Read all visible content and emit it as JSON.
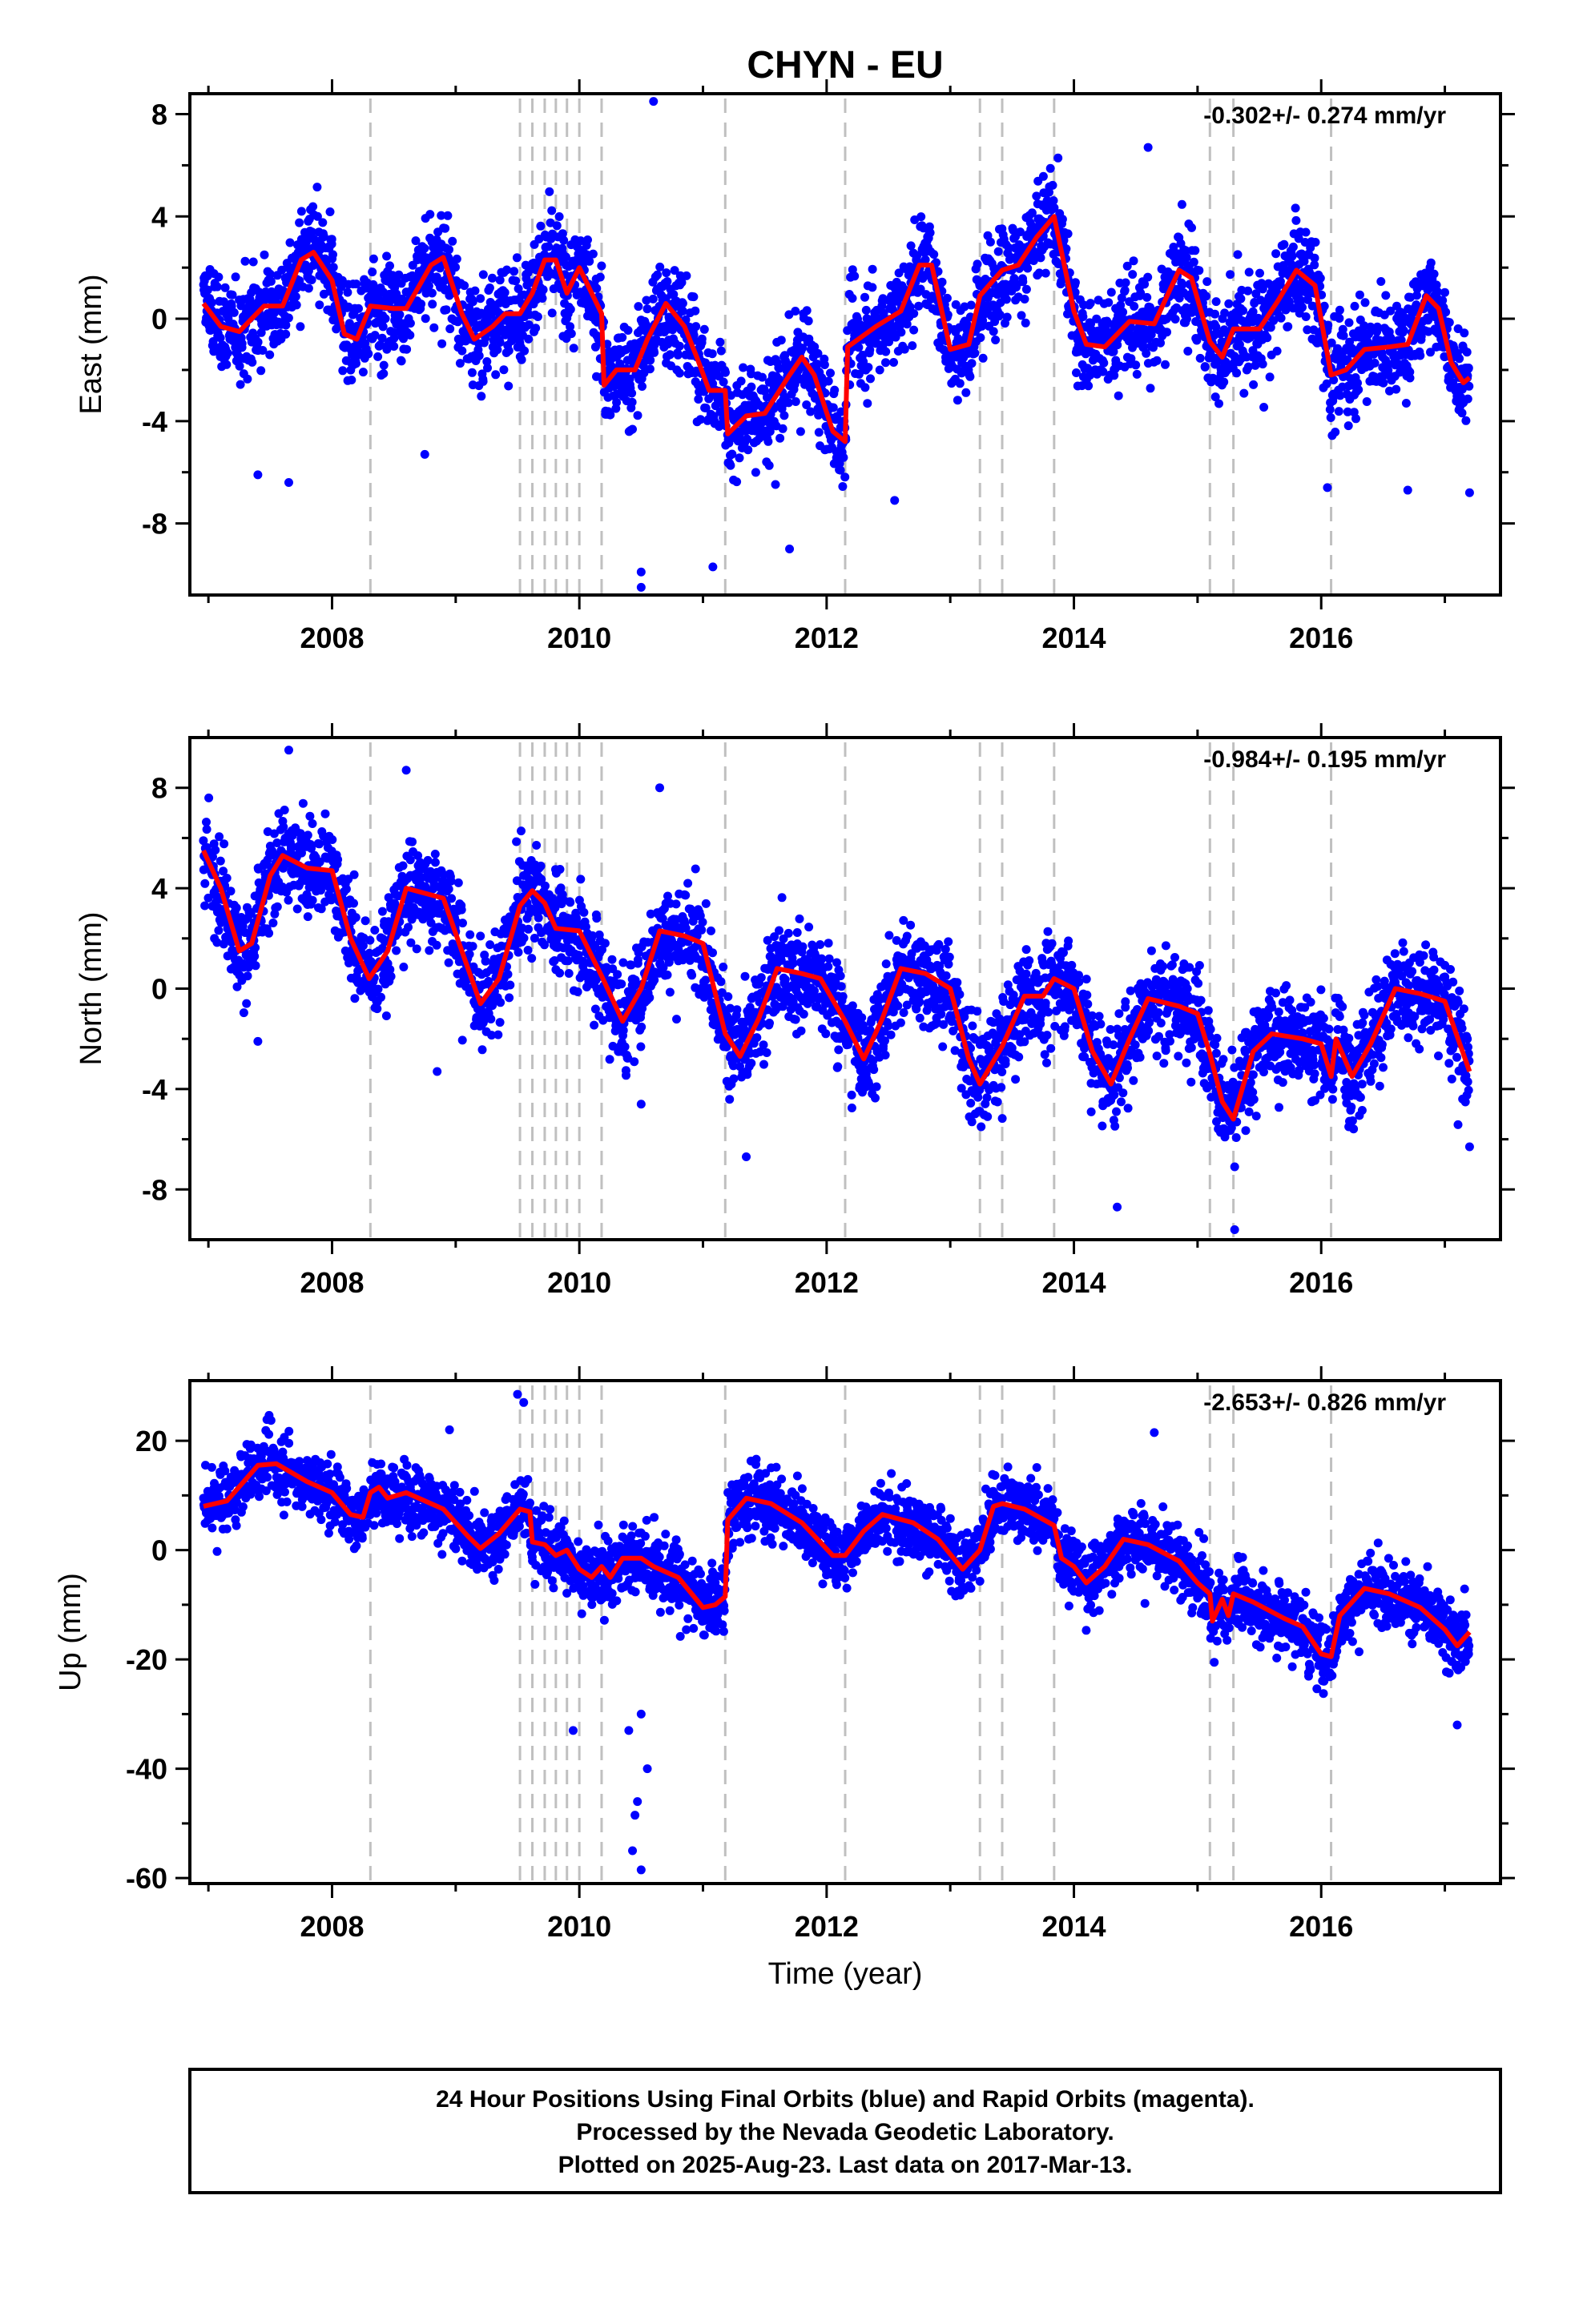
{
  "title": "CHYN - EU",
  "xlabel": "Time (year)",
  "footer": {
    "line1": "24 Hour Positions Using Final Orbits (blue) and Rapid Orbits (magenta).",
    "line2": "Processed by the Nevada Geodetic Laboratory.",
    "line3": "Plotted on 2025-Aug-23. Last data on 2017-Mar-13."
  },
  "colors": {
    "points": "#0000ff",
    "model": "#ff0000",
    "steps": "#c0c0c0",
    "frame": "#000000"
  },
  "chart_data": [
    {
      "type": "scatter",
      "ylabel": "East (mm)",
      "rate": "-0.302+/- 0.274 mm/yr",
      "xlim": [
        2006.85,
        2017.45
      ],
      "ylim": [
        -10.8,
        8.8
      ],
      "xticks": [
        2008,
        2010,
        2012,
        2014,
        2016
      ],
      "yticks": [
        8,
        4,
        0,
        -4,
        -8
      ],
      "steps": [
        2008.31,
        2009.52,
        2009.62,
        2009.72,
        2009.81,
        2009.9,
        2010.0,
        2010.18,
        2011.18,
        2012.15,
        2013.24,
        2013.42,
        2013.84,
        2015.1,
        2015.29,
        2016.08
      ],
      "model": [
        [
          2006.96,
          0.6
        ],
        [
          2007.1,
          -0.3
        ],
        [
          2007.25,
          -0.5
        ],
        [
          2007.45,
          0.5
        ],
        [
          2007.6,
          0.5
        ],
        [
          2007.75,
          2.3
        ],
        [
          2007.85,
          2.6
        ],
        [
          2008.0,
          1.5
        ],
        [
          2008.1,
          -0.6
        ],
        [
          2008.2,
          -0.8
        ],
        [
          2008.31,
          0.5
        ],
        [
          2008.5,
          0.4
        ],
        [
          2008.6,
          0.4
        ],
        [
          2008.8,
          2.1
        ],
        [
          2008.9,
          2.4
        ],
        [
          2009.05,
          0.2
        ],
        [
          2009.15,
          -0.8
        ],
        [
          2009.3,
          -0.3
        ],
        [
          2009.4,
          0.2
        ],
        [
          2009.52,
          0.2
        ],
        [
          2009.62,
          1.0
        ],
        [
          2009.72,
          2.3
        ],
        [
          2009.81,
          2.3
        ],
        [
          2009.9,
          1.0
        ],
        [
          2010.0,
          2.0
        ],
        [
          2010.18,
          0.2
        ],
        [
          2010.2,
          -2.6
        ],
        [
          2010.3,
          -2.0
        ],
        [
          2010.45,
          -2.0
        ],
        [
          2010.55,
          -0.8
        ],
        [
          2010.7,
          0.6
        ],
        [
          2010.85,
          -0.3
        ],
        [
          2010.95,
          -1.5
        ],
        [
          2011.05,
          -2.8
        ],
        [
          2011.18,
          -2.8
        ],
        [
          2011.2,
          -4.5
        ],
        [
          2011.35,
          -3.8
        ],
        [
          2011.5,
          -3.7
        ],
        [
          2011.7,
          -2.2
        ],
        [
          2011.8,
          -1.5
        ],
        [
          2011.9,
          -2.2
        ],
        [
          2012.05,
          -4.4
        ],
        [
          2012.15,
          -4.8
        ],
        [
          2012.17,
          -1.1
        ],
        [
          2012.4,
          -0.3
        ],
        [
          2012.6,
          0.3
        ],
        [
          2012.75,
          2.1
        ],
        [
          2012.85,
          2.1
        ],
        [
          2013.0,
          -1.2
        ],
        [
          2013.15,
          -1.0
        ],
        [
          2013.24,
          0.9
        ],
        [
          2013.42,
          1.9
        ],
        [
          2013.55,
          2.1
        ],
        [
          2013.7,
          3.2
        ],
        [
          2013.84,
          4.0
        ],
        [
          2014.0,
          0.3
        ],
        [
          2014.1,
          -1.0
        ],
        [
          2014.25,
          -1.1
        ],
        [
          2014.45,
          -0.1
        ],
        [
          2014.65,
          -0.2
        ],
        [
          2014.85,
          1.9
        ],
        [
          2014.95,
          1.6
        ],
        [
          2015.1,
          -0.9
        ],
        [
          2015.2,
          -1.5
        ],
        [
          2015.29,
          -0.4
        ],
        [
          2015.5,
          -0.4
        ],
        [
          2015.65,
          0.7
        ],
        [
          2015.8,
          1.9
        ],
        [
          2015.95,
          1.3
        ],
        [
          2016.08,
          -2.2
        ],
        [
          2016.2,
          -2.0
        ],
        [
          2016.35,
          -1.2
        ],
        [
          2016.55,
          -1.1
        ],
        [
          2016.7,
          -1.0
        ],
        [
          2016.85,
          0.9
        ],
        [
          2016.95,
          0.4
        ],
        [
          2017.05,
          -1.7
        ],
        [
          2017.15,
          -2.5
        ],
        [
          2017.2,
          -2.3
        ]
      ],
      "outliers": [
        [
          2007.4,
          -6.1
        ],
        [
          2007.65,
          -6.4
        ],
        [
          2008.75,
          -5.3
        ],
        [
          2010.5,
          -10.5
        ],
        [
          2010.5,
          -9.9
        ],
        [
          2010.6,
          8.5
        ],
        [
          2011.08,
          -9.7
        ],
        [
          2011.7,
          -9.0
        ],
        [
          2012.55,
          -7.1
        ],
        [
          2014.6,
          6.7
        ],
        [
          2016.7,
          -6.7
        ],
        [
          2016.05,
          -6.6
        ],
        [
          2017.2,
          -6.8
        ]
      ]
    },
    {
      "type": "scatter",
      "ylabel": "North (mm)",
      "rate": "-0.984+/- 0.195 mm/yr",
      "xlim": [
        2006.85,
        2017.45
      ],
      "ylim": [
        -10.0,
        10.0
      ],
      "xticks": [
        2008,
        2010,
        2012,
        2014,
        2016
      ],
      "yticks": [
        8,
        4,
        0,
        -4,
        -8
      ],
      "steps": [
        2008.31,
        2009.52,
        2009.62,
        2009.72,
        2009.81,
        2009.9,
        2010.0,
        2010.18,
        2011.18,
        2012.15,
        2013.24,
        2013.42,
        2013.84,
        2015.1,
        2015.29,
        2016.08
      ],
      "model": [
        [
          2006.96,
          5.5
        ],
        [
          2007.1,
          4.0
        ],
        [
          2007.25,
          1.5
        ],
        [
          2007.35,
          1.8
        ],
        [
          2007.5,
          4.5
        ],
        [
          2007.6,
          5.3
        ],
        [
          2007.8,
          4.8
        ],
        [
          2008.0,
          4.7
        ],
        [
          2008.15,
          2.0
        ],
        [
          2008.3,
          0.4
        ],
        [
          2008.45,
          1.5
        ],
        [
          2008.6,
          4.0
        ],
        [
          2008.75,
          3.8
        ],
        [
          2008.9,
          3.6
        ],
        [
          2009.05,
          1.5
        ],
        [
          2009.2,
          -0.6
        ],
        [
          2009.35,
          0.4
        ],
        [
          2009.52,
          3.3
        ],
        [
          2009.62,
          3.9
        ],
        [
          2009.72,
          3.4
        ],
        [
          2009.81,
          2.4
        ],
        [
          2010.0,
          2.3
        ],
        [
          2010.18,
          0.5
        ],
        [
          2010.35,
          -1.3
        ],
        [
          2010.5,
          0.0
        ],
        [
          2010.65,
          2.3
        ],
        [
          2010.85,
          2.1
        ],
        [
          2011.0,
          1.8
        ],
        [
          2011.18,
          -1.8
        ],
        [
          2011.3,
          -2.7
        ],
        [
          2011.45,
          -1.2
        ],
        [
          2011.6,
          0.8
        ],
        [
          2011.8,
          0.6
        ],
        [
          2011.95,
          0.4
        ],
        [
          2012.15,
          -1.3
        ],
        [
          2012.3,
          -2.8
        ],
        [
          2012.45,
          -1.2
        ],
        [
          2012.6,
          0.8
        ],
        [
          2012.8,
          0.6
        ],
        [
          2013.0,
          0.0
        ],
        [
          2013.15,
          -2.8
        ],
        [
          2013.24,
          -3.8
        ],
        [
          2013.42,
          -2.3
        ],
        [
          2013.6,
          -0.3
        ],
        [
          2013.75,
          -0.3
        ],
        [
          2013.84,
          0.4
        ],
        [
          2014.0,
          0.0
        ],
        [
          2014.15,
          -2.5
        ],
        [
          2014.3,
          -3.8
        ],
        [
          2014.45,
          -2.0
        ],
        [
          2014.6,
          -0.4
        ],
        [
          2014.85,
          -0.7
        ],
        [
          2015.0,
          -1.0
        ],
        [
          2015.1,
          -2.6
        ],
        [
          2015.2,
          -4.5
        ],
        [
          2015.29,
          -5.2
        ],
        [
          2015.45,
          -2.5
        ],
        [
          2015.6,
          -1.8
        ],
        [
          2015.85,
          -2.0
        ],
        [
          2016.0,
          -2.2
        ],
        [
          2016.08,
          -3.5
        ],
        [
          2016.12,
          -2.0
        ],
        [
          2016.25,
          -3.5
        ],
        [
          2016.4,
          -2.2
        ],
        [
          2016.6,
          0.0
        ],
        [
          2016.8,
          -0.2
        ],
        [
          2017.0,
          -0.5
        ],
        [
          2017.2,
          -3.3
        ]
      ],
      "outliers": [
        [
          2007.65,
          9.5
        ],
        [
          2008.6,
          8.7
        ],
        [
          2010.65,
          8.0
        ],
        [
          2007.4,
          -2.1
        ],
        [
          2008.85,
          -3.3
        ],
        [
          2010.5,
          -4.6
        ],
        [
          2011.35,
          -6.7
        ],
        [
          2014.35,
          -8.7
        ],
        [
          2015.3,
          -9.6
        ],
        [
          2017.2,
          -6.3
        ]
      ]
    },
    {
      "type": "scatter",
      "ylabel": "Up (mm)",
      "rate": "-2.653+/- 0.826 mm/yr",
      "xlim": [
        2006.85,
        2017.45
      ],
      "ylim": [
        -61.0,
        31.0
      ],
      "xticks": [
        2008,
        2010,
        2012,
        2014,
        2016
      ],
      "yticks": [
        20,
        0,
        -20,
        -40,
        -60
      ],
      "steps": [
        2008.31,
        2009.52,
        2009.62,
        2009.72,
        2009.81,
        2009.9,
        2010.0,
        2010.18,
        2011.18,
        2012.15,
        2013.24,
        2013.42,
        2013.84,
        2015.1,
        2015.29,
        2016.08
      ],
      "model": [
        [
          2006.96,
          8.0
        ],
        [
          2007.15,
          9.0
        ],
        [
          2007.4,
          15.5
        ],
        [
          2007.55,
          15.8
        ],
        [
          2007.8,
          12.5
        ],
        [
          2008.0,
          10.5
        ],
        [
          2008.15,
          6.5
        ],
        [
          2008.25,
          6.0
        ],
        [
          2008.31,
          10.5
        ],
        [
          2008.38,
          11.5
        ],
        [
          2008.45,
          9.5
        ],
        [
          2008.6,
          10.5
        ],
        [
          2008.9,
          7.5
        ],
        [
          2009.1,
          2.5
        ],
        [
          2009.2,
          0.3
        ],
        [
          2009.35,
          3.0
        ],
        [
          2009.52,
          7.5
        ],
        [
          2009.6,
          7.0
        ],
        [
          2009.62,
          1.5
        ],
        [
          2009.72,
          1.0
        ],
        [
          2009.81,
          -1.0
        ],
        [
          2009.9,
          0.0
        ],
        [
          2010.0,
          -3.5
        ],
        [
          2010.1,
          -5.0
        ],
        [
          2010.18,
          -3.0
        ],
        [
          2010.25,
          -5.0
        ],
        [
          2010.35,
          -1.5
        ],
        [
          2010.5,
          -1.5
        ],
        [
          2010.6,
          -3.0
        ],
        [
          2010.8,
          -5.0
        ],
        [
          2011.0,
          -10.5
        ],
        [
          2011.1,
          -10.0
        ],
        [
          2011.18,
          -8.5
        ],
        [
          2011.2,
          5.5
        ],
        [
          2011.35,
          9.5
        ],
        [
          2011.55,
          8.5
        ],
        [
          2011.8,
          5.0
        ],
        [
          2012.05,
          -1.0
        ],
        [
          2012.15,
          -1.0
        ],
        [
          2012.3,
          3.5
        ],
        [
          2012.45,
          6.5
        ],
        [
          2012.7,
          5.0
        ],
        [
          2012.9,
          2.0
        ],
        [
          2013.1,
          -3.5
        ],
        [
          2013.24,
          0.0
        ],
        [
          2013.35,
          8.0
        ],
        [
          2013.42,
          8.5
        ],
        [
          2013.6,
          7.5
        ],
        [
          2013.84,
          4.5
        ],
        [
          2013.9,
          -1.5
        ],
        [
          2014.0,
          -3.0
        ],
        [
          2014.1,
          -6.0
        ],
        [
          2014.25,
          -3.0
        ],
        [
          2014.4,
          2.0
        ],
        [
          2014.6,
          1.0
        ],
        [
          2014.85,
          -2.0
        ],
        [
          2015.0,
          -6.0
        ],
        [
          2015.1,
          -8.0
        ],
        [
          2015.12,
          -13.0
        ],
        [
          2015.2,
          -9.0
        ],
        [
          2015.25,
          -12.0
        ],
        [
          2015.29,
          -8.0
        ],
        [
          2015.45,
          -9.5
        ],
        [
          2015.7,
          -12.5
        ],
        [
          2015.85,
          -14.0
        ],
        [
          2016.0,
          -19.0
        ],
        [
          2016.08,
          -19.5
        ],
        [
          2016.15,
          -12.0
        ],
        [
          2016.35,
          -7.0
        ],
        [
          2016.55,
          -8.0
        ],
        [
          2016.8,
          -10.5
        ],
        [
          2017.0,
          -14.5
        ],
        [
          2017.1,
          -17.5
        ],
        [
          2017.2,
          -15.0
        ]
      ],
      "outliers": [
        [
          2009.5,
          28.5
        ],
        [
          2009.55,
          27.0
        ],
        [
          2008.95,
          22.0
        ],
        [
          2010.4,
          -33.0
        ],
        [
          2010.45,
          -48.5
        ],
        [
          2010.47,
          -46.0
        ],
        [
          2010.5,
          -58.5
        ],
        [
          2010.43,
          -55.0
        ],
        [
          2010.55,
          -40.0
        ],
        [
          2010.5,
          -30.0
        ],
        [
          2009.95,
          -33.0
        ],
        [
          2014.65,
          21.5
        ],
        [
          2017.1,
          -32.0
        ]
      ]
    }
  ]
}
